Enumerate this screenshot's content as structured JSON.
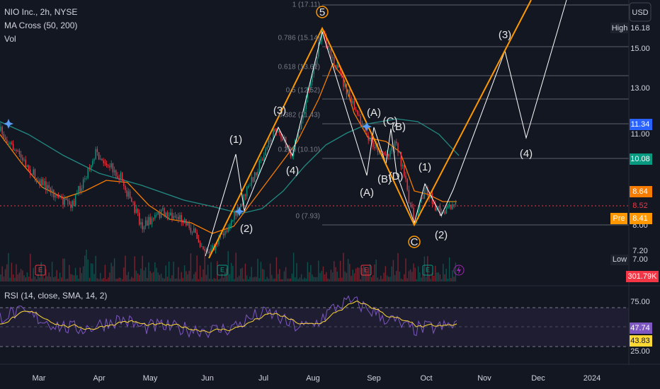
{
  "header": {
    "symbol": "NIO Inc., 2h, NYSE",
    "indicator": "MA Cross (50, 200)",
    "volume": "Vol",
    "currency": "USD"
  },
  "price_scale": {
    "high_tag": "High",
    "high": "16.18",
    "p15": "15.00",
    "p13": "13.00",
    "last_blue": "11.34",
    "p11": "11.00",
    "last_green": "10.08",
    "ma_orange": "8.64",
    "close": "8.52",
    "pre_tag": "Pre",
    "pre": "8.41",
    "p8": "8.00",
    "p72": "7.20",
    "low_tag": "Low",
    "low": "7.00",
    "vol": "301.79K"
  },
  "fib_levels": [
    "1 (17.11)",
    "0.786 (15.14)",
    "0.618 (13.61)",
    "0.5 (12.52)",
    "0.382 (11.43)",
    "0.236 (10.10)",
    "0 (7.93)"
  ],
  "wave_labels": [
    "(1)",
    "(2)",
    "(3)",
    "(4)",
    "5",
    "(A)",
    "(A)",
    "(B)",
    "(C)",
    "(B)",
    "(D)",
    "C",
    "(1)",
    "(2)",
    "(3)",
    "(4)"
  ],
  "events": [
    "E",
    "E",
    "E",
    "E"
  ],
  "rsi": {
    "title": "RSI (14, close, SMA, 14, 2)",
    "p75": "75.00",
    "rsi": "47.74",
    "sma": "43.83",
    "p25": "25.00"
  },
  "x_axis": [
    "Mar",
    "Apr",
    "May",
    "Jun",
    "Jul",
    "Aug",
    "Sep",
    "Oct",
    "Nov",
    "Dec",
    "2024"
  ]
}
